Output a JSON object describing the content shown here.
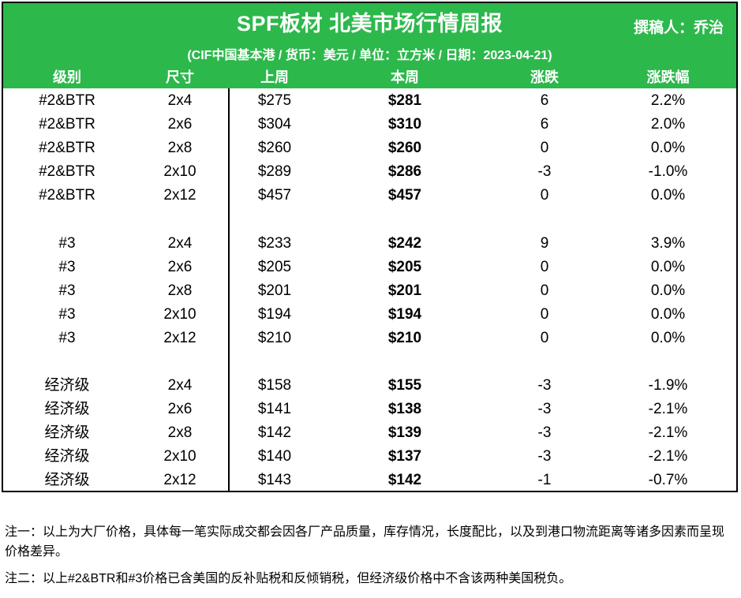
{
  "header": {
    "title": "SPF板材 北美市场行情周报",
    "author": "撰稿人：乔治",
    "subtitle": "(CIF中国基本港 / 货币：美元 / 单位：立方米 / 日期：2023-04-21)",
    "background_color": "#2db84c",
    "columns": [
      "级别",
      "尺寸",
      "上周",
      "本周",
      "涨跌",
      "涨跌幅"
    ]
  },
  "rows": [
    {
      "grade": "#2&BTR",
      "size": "2x4",
      "last_week": "$275",
      "this_week": "$281",
      "change": "6",
      "change_pct": "2.2%"
    },
    {
      "grade": "#2&BTR",
      "size": "2x6",
      "last_week": "$304",
      "this_week": "$310",
      "change": "6",
      "change_pct": "2.0%"
    },
    {
      "grade": "#2&BTR",
      "size": "2x8",
      "last_week": "$260",
      "this_week": "$260",
      "change": "0",
      "change_pct": "0.0%"
    },
    {
      "grade": "#2&BTR",
      "size": "2x10",
      "last_week": "$289",
      "this_week": "$286",
      "change": "-3",
      "change_pct": "-1.0%"
    },
    {
      "grade": "#2&BTR",
      "size": "2x12",
      "last_week": "$457",
      "this_week": "$457",
      "change": "0",
      "change_pct": "0.0%"
    },
    {
      "grade": "#3",
      "size": "2x4",
      "last_week": "$233",
      "this_week": "$242",
      "change": "9",
      "change_pct": "3.9%"
    },
    {
      "grade": "#3",
      "size": "2x6",
      "last_week": "$205",
      "this_week": "$205",
      "change": "0",
      "change_pct": "0.0%"
    },
    {
      "grade": "#3",
      "size": "2x8",
      "last_week": "$201",
      "this_week": "$201",
      "change": "0",
      "change_pct": "0.0%"
    },
    {
      "grade": "#3",
      "size": "2x10",
      "last_week": "$194",
      "this_week": "$194",
      "change": "0",
      "change_pct": "0.0%"
    },
    {
      "grade": "#3",
      "size": "2x12",
      "last_week": "$210",
      "this_week": "$210",
      "change": "0",
      "change_pct": "0.0%"
    },
    {
      "grade": "经济级",
      "size": "2x4",
      "last_week": "$158",
      "this_week": "$155",
      "change": "-3",
      "change_pct": "-1.9%"
    },
    {
      "grade": "经济级",
      "size": "2x6",
      "last_week": "$141",
      "this_week": "$138",
      "change": "-3",
      "change_pct": "-2.1%"
    },
    {
      "grade": "经济级",
      "size": "2x8",
      "last_week": "$142",
      "this_week": "$139",
      "change": "-3",
      "change_pct": "-2.1%"
    },
    {
      "grade": "经济级",
      "size": "2x10",
      "last_week": "$140",
      "this_week": "$137",
      "change": "-3",
      "change_pct": "-2.1%"
    },
    {
      "grade": "经济级",
      "size": "2x12",
      "last_week": "$143",
      "this_week": "$142",
      "change": "-1",
      "change_pct": "-0.7%"
    }
  ],
  "notes": [
    "注一：以上为大厂价格，具体每一笔实际成交都会因各厂产品质量，库存情况，长度配比，以及到港口物流距离等诸多因素而呈现价格差异。",
    "注二：以上#2&BTR和#3价格已含美国的反补贴税和反倾销税，但经济级价格中不含该两种美国税负。"
  ]
}
